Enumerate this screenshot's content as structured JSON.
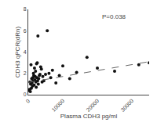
{
  "chart_data": {
    "type": "scatter",
    "xlabel": "Plasma CDH3 pg/ml",
    "ylabel": "CDH3 qPCR(dRn)",
    "annotations": [
      "P=0.038"
    ],
    "xlim": [
      0,
      35000
    ],
    "ylim": [
      0,
      8
    ],
    "xticks": [
      0,
      10000,
      20000,
      30000
    ],
    "yticks": [
      0,
      2,
      4,
      6,
      8
    ],
    "grid": false,
    "series": [
      {
        "type": "scatter",
        "marker": "circle",
        "color": "#111111",
        "x": [
          200,
          400,
          500,
          600,
          700,
          800,
          900,
          1000,
          1100,
          1200,
          1300,
          1400,
          1500,
          1600,
          1700,
          1800,
          1900,
          2000,
          2100,
          2200,
          2300,
          2400,
          2500,
          2600,
          2700,
          2800,
          2900,
          3000,
          3200,
          3400,
          3600,
          3800,
          4000,
          4200,
          4500,
          5000,
          5500,
          6000,
          6500,
          7000,
          8000,
          9000,
          10000,
          12000,
          14000,
          17000,
          20000,
          25000,
          32000,
          35000
        ],
        "values": [
          0.4,
          0.5,
          1.2,
          0.3,
          1.0,
          2.8,
          0.6,
          1.5,
          1.1,
          0.8,
          1.6,
          1.3,
          2.0,
          1.8,
          0.9,
          2.5,
          1.4,
          1.7,
          2.2,
          1.2,
          0.7,
          2.9,
          1.6,
          3.0,
          1.3,
          5.5,
          1.0,
          1.5,
          1.8,
          1.9,
          2.6,
          2.4,
          1.2,
          1.7,
          1.3,
          1.9,
          6.0,
          2.0,
          1.6,
          2.3,
          1.1,
          1.8,
          2.7,
          1.5,
          2.1,
          3.5,
          2.5,
          2.2,
          2.8,
          3.0
        ]
      },
      {
        "type": "line",
        "line_style": "dashed",
        "color": "#666666",
        "x": [
          0,
          35000
        ],
        "values": [
          1.15,
          3.1
        ]
      }
    ]
  }
}
